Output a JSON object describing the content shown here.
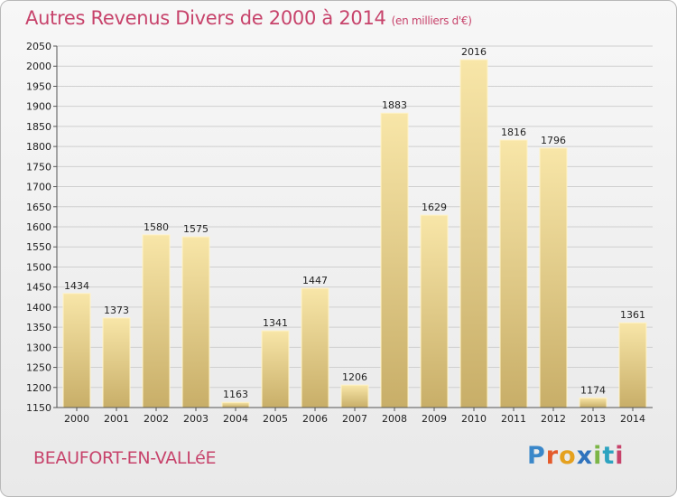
{
  "header": {
    "title": "Autres Revenus Divers de 2000 à 2014",
    "unit": "(en milliers d'€)"
  },
  "footer": {
    "place": "BEAUFORT-EN-VALLéE",
    "logo": [
      "P",
      "r",
      "o",
      "x",
      "i",
      "t",
      "i"
    ]
  },
  "colors": {
    "title": "#c7436b",
    "bar_light": "#f8e6a8",
    "bar_dark": "#c8ae68",
    "grid": "#cfcfcf"
  },
  "chart_data": {
    "type": "bar",
    "title": "Autres Revenus Divers de 2000 à 2014",
    "subtitle": "(en milliers d'€)",
    "xlabel": "",
    "ylabel": "",
    "categories": [
      "2000",
      "2001",
      "2002",
      "2003",
      "2004",
      "2005",
      "2006",
      "2007",
      "2008",
      "2009",
      "2010",
      "2011",
      "2012",
      "2013",
      "2014"
    ],
    "values": [
      1434,
      1373,
      1580,
      1575,
      1163,
      1341,
      1447,
      1206,
      1883,
      1629,
      2016,
      1816,
      1796,
      1174,
      1361
    ],
    "ylim": [
      1150,
      2050
    ],
    "yticks": [
      1150,
      1200,
      1250,
      1300,
      1350,
      1400,
      1450,
      1500,
      1550,
      1600,
      1650,
      1700,
      1750,
      1800,
      1850,
      1900,
      1950,
      2000,
      2050
    ],
    "grid": true,
    "legend": "none"
  }
}
